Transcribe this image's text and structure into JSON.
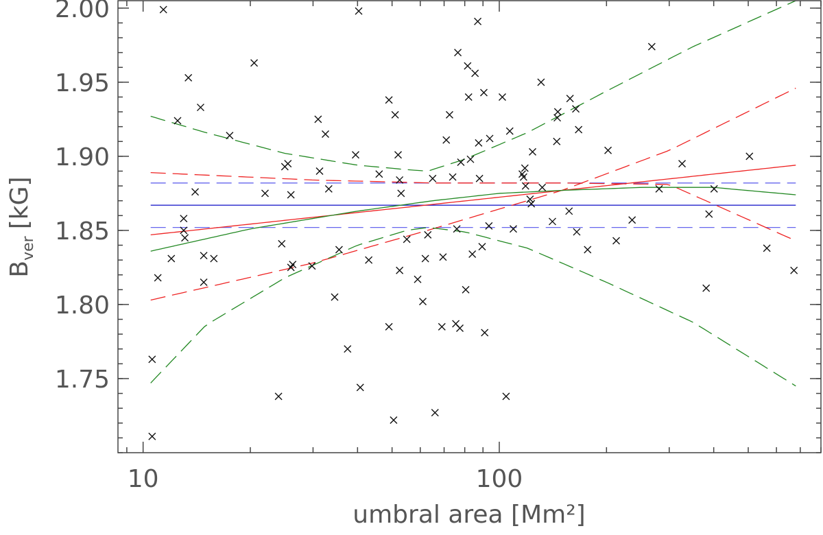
{
  "chart_data": {
    "type": "scatter",
    "title": "",
    "xlabel": "umbral area [Mm²]",
    "ylabel": "B",
    "ylabel_sub": "ver",
    "ylabel_unit": "[kG]",
    "xscale": "log",
    "xlim": [
      8.5,
      800
    ],
    "ylim": [
      1.7,
      2.005
    ],
    "xticks": [
      {
        "value": 10,
        "label": "10"
      },
      {
        "value": 100,
        "label": "100"
      }
    ],
    "yticks": [
      {
        "value": 1.75,
        "label": "1.75"
      },
      {
        "value": 1.8,
        "label": "1.80"
      },
      {
        "value": 1.85,
        "label": "1.85"
      },
      {
        "value": 1.9,
        "label": "1.90"
      },
      {
        "value": 1.95,
        "label": "1.95"
      },
      {
        "value": 2.0,
        "label": "2.00"
      }
    ],
    "grid": false,
    "points": [
      [
        10.6,
        1.711
      ],
      [
        10.6,
        1.763
      ],
      [
        11.0,
        1.818
      ],
      [
        11.4,
        1.999
      ],
      [
        12.0,
        1.831
      ],
      [
        12.5,
        1.924
      ],
      [
        13.0,
        1.858
      ],
      [
        13.0,
        1.85
      ],
      [
        13.1,
        1.845
      ],
      [
        13.4,
        1.953
      ],
      [
        14.0,
        1.876
      ],
      [
        14.5,
        1.933
      ],
      [
        14.8,
        1.833
      ],
      [
        14.8,
        1.815
      ],
      [
        15.8,
        1.831
      ],
      [
        17.5,
        1.914
      ],
      [
        20.5,
        1.963
      ],
      [
        22.0,
        1.875
      ],
      [
        24.0,
        1.738
      ],
      [
        24.5,
        1.841
      ],
      [
        25.0,
        1.893
      ],
      [
        25.5,
        1.895
      ],
      [
        26.0,
        1.874
      ],
      [
        26.0,
        1.825
      ],
      [
        26.3,
        1.827
      ],
      [
        29.8,
        1.826
      ],
      [
        31.0,
        1.925
      ],
      [
        31.3,
        1.89
      ],
      [
        32.5,
        1.915
      ],
      [
        33.2,
        1.878
      ],
      [
        34.5,
        1.805
      ],
      [
        35.5,
        1.837
      ],
      [
        37.5,
        1.77
      ],
      [
        39.5,
        1.901
      ],
      [
        40.3,
        1.998
      ],
      [
        40.7,
        1.744
      ],
      [
        43.0,
        1.83
      ],
      [
        46.0,
        1.888
      ],
      [
        49.0,
        1.785
      ],
      [
        49.0,
        1.938
      ],
      [
        50.5,
        1.722
      ],
      [
        51.0,
        1.928
      ],
      [
        52.0,
        1.901
      ],
      [
        52.5,
        1.884
      ],
      [
        52.5,
        1.823
      ],
      [
        53.0,
        1.875
      ],
      [
        55.0,
        1.844
      ],
      [
        59.0,
        1.817
      ],
      [
        61.0,
        1.802
      ],
      [
        62.0,
        1.831
      ],
      [
        63.0,
        1.847
      ],
      [
        65.0,
        1.885
      ],
      [
        66.0,
        1.727
      ],
      [
        69.0,
        1.785
      ],
      [
        69.5,
        1.832
      ],
      [
        71.0,
        1.911
      ],
      [
        72.5,
        1.928
      ],
      [
        74.0,
        1.886
      ],
      [
        75.5,
        1.787
      ],
      [
        76.0,
        1.851
      ],
      [
        76.5,
        1.97
      ],
      [
        77.5,
        1.784
      ],
      [
        78.0,
        1.896
      ],
      [
        80.5,
        1.81
      ],
      [
        81.5,
        1.961
      ],
      [
        82.0,
        1.94
      ],
      [
        83.0,
        1.898
      ],
      [
        84.0,
        1.834
      ],
      [
        85.5,
        1.956
      ],
      [
        87.0,
        1.991
      ],
      [
        87.5,
        1.909
      ],
      [
        88.0,
        1.885
      ],
      [
        89.5,
        1.839
      ],
      [
        90.5,
        1.943
      ],
      [
        91.0,
        1.781
      ],
      [
        93.5,
        1.853
      ],
      [
        94.0,
        1.912
      ],
      [
        102.0,
        1.94
      ],
      [
        104.5,
        1.738
      ],
      [
        107.0,
        1.917
      ],
      [
        109.5,
        1.851
      ],
      [
        116.0,
        1.888
      ],
      [
        117.0,
        1.886
      ],
      [
        118.0,
        1.892
      ],
      [
        118.5,
        1.88
      ],
      [
        122.0,
        1.871
      ],
      [
        123.0,
        1.868
      ],
      [
        124.0,
        1.903
      ],
      [
        131.0,
        1.95
      ],
      [
        132.0,
        1.879
      ],
      [
        141.0,
        1.856
      ],
      [
        145.0,
        1.91
      ],
      [
        145.5,
        1.926
      ],
      [
        146.0,
        1.93
      ],
      [
        157.0,
        1.863
      ],
      [
        158.0,
        1.939
      ],
      [
        164.0,
        1.932
      ],
      [
        165.0,
        1.849
      ],
      [
        167.0,
        1.918
      ],
      [
        177.0,
        1.837
      ],
      [
        202.0,
        1.904
      ],
      [
        213.0,
        1.843
      ],
      [
        236.0,
        1.857
      ],
      [
        268.0,
        1.974
      ],
      [
        281.0,
        1.878
      ],
      [
        326.0,
        1.895
      ],
      [
        381.0,
        1.811
      ],
      [
        388.0,
        1.861
      ],
      [
        401.0,
        1.878
      ],
      [
        504.0,
        1.9
      ],
      [
        564.0,
        1.838
      ],
      [
        672.0,
        1.823
      ]
    ],
    "fits": [
      {
        "color": "#2222cc",
        "dash": "solid",
        "x": [
          10.5,
          680
        ],
        "y": [
          1.867,
          1.867
        ]
      },
      {
        "color": "#6666ee",
        "dash": "dashed",
        "x": [
          10.5,
          680
        ],
        "y": [
          1.882,
          1.882
        ]
      },
      {
        "color": "#6666ee",
        "dash": "dashed",
        "x": [
          10.5,
          680
        ],
        "y": [
          1.852,
          1.852
        ]
      },
      {
        "color": "#ee2222",
        "dash": "solid",
        "x": [
          10.5,
          680
        ],
        "y": [
          1.847,
          1.894
        ]
      },
      {
        "color": "#ee2222",
        "dash": "dashed",
        "x": [
          10.5,
          30,
          65,
          150,
          300,
          680
        ],
        "y": [
          1.889,
          1.884,
          1.882,
          1.882,
          1.881,
          1.843
        ]
      },
      {
        "color": "#ee2222",
        "dash": "dashed",
        "x": [
          10.5,
          30,
          65,
          150,
          300,
          680
        ],
        "y": [
          1.803,
          1.828,
          1.851,
          1.877,
          1.904,
          1.946
        ]
      },
      {
        "color": "#228822",
        "dash": "solid",
        "x": [
          10.5,
          20,
          40,
          65,
          100,
          150,
          250,
          400,
          680
        ],
        "y": [
          1.836,
          1.851,
          1.863,
          1.87,
          1.875,
          1.877,
          1.879,
          1.879,
          1.874
        ]
      },
      {
        "color": "#228822",
        "dash": "dashed",
        "x": [
          10.5,
          15,
          25,
          40,
          55,
          63,
          80,
          120,
          200,
          350,
          680
        ],
        "y": [
          1.927,
          1.916,
          1.902,
          1.894,
          1.891,
          1.89,
          1.898,
          1.916,
          1.944,
          1.974,
          2.005
        ]
      },
      {
        "color": "#228822",
        "dash": "dashed",
        "x": [
          10.5,
          15,
          25,
          40,
          55,
          63,
          80,
          120,
          200,
          350,
          680
        ],
        "y": [
          1.747,
          1.786,
          1.818,
          1.84,
          1.85,
          1.852,
          1.849,
          1.838,
          1.815,
          1.788,
          1.745
        ]
      }
    ]
  }
}
